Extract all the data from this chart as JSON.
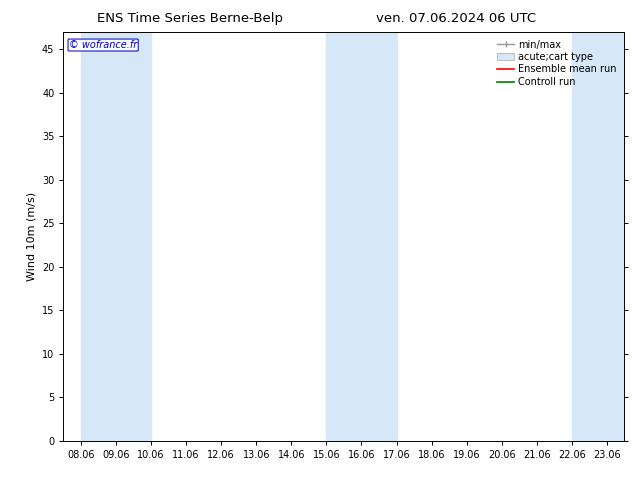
{
  "title_left": "ENS Time Series Berne-Belp",
  "title_right": "ven. 07.06.2024 06 UTC",
  "ylabel": "Wind 10m (m/s)",
  "watermark": "© wofrance.fr",
  "xlim": [
    7.5,
    23.5
  ],
  "ylim": [
    0,
    47
  ],
  "yticks": [
    0,
    5,
    10,
    15,
    20,
    25,
    30,
    35,
    40,
    45
  ],
  "xtick_labels": [
    "08.06",
    "09.06",
    "10.06",
    "11.06",
    "12.06",
    "13.06",
    "14.06",
    "15.06",
    "16.06",
    "17.06",
    "18.06",
    "19.06",
    "20.06",
    "21.06",
    "22.06",
    "23.06"
  ],
  "xtick_positions": [
    8,
    9,
    10,
    11,
    12,
    13,
    14,
    15,
    16,
    17,
    18,
    19,
    20,
    21,
    22,
    23
  ],
  "shaded_bands": [
    {
      "x_start": 8.0,
      "x_end": 10.0
    },
    {
      "x_start": 15.0,
      "x_end": 17.0
    },
    {
      "x_start": 22.0,
      "x_end": 23.5
    }
  ],
  "band_color": "#d6e8f7",
  "background_color": "#ffffff",
  "legend_labels": [
    "min/max",
    "acute;cart type",
    "Ensemble mean run",
    "Controll run"
  ],
  "legend_colors": [
    "#aaaaaa",
    "#d6e8f7",
    "red",
    "green"
  ],
  "title_fontsize": 9.5,
  "axis_label_fontsize": 8,
  "tick_fontsize": 7,
  "watermark_color": "#0000cc",
  "watermark_fontsize": 7,
  "legend_fontsize": 7
}
